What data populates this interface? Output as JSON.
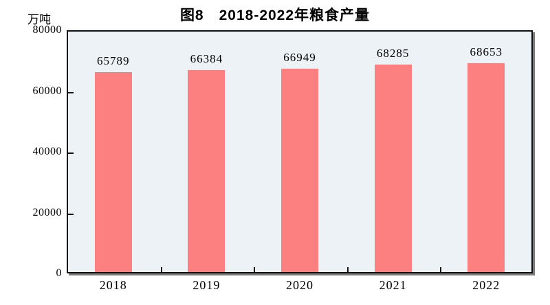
{
  "chart_data": {
    "type": "bar",
    "title": "图8　2018-2022年粮食产量",
    "unit_label": "万吨",
    "categories": [
      "2018",
      "2019",
      "2020",
      "2021",
      "2022"
    ],
    "values": [
      65789,
      66384,
      66949,
      68285,
      68653
    ],
    "xlabel": "",
    "ylabel": "万吨",
    "ylim": [
      0,
      80000
    ],
    "yticks": [
      0,
      20000,
      40000,
      60000,
      80000
    ],
    "grid": false,
    "legend": "none",
    "bar_color": "#FC8080",
    "plot_bg": "#EDF2F6",
    "frame_color": "#111111",
    "shadow_color": "#7a7a7a"
  }
}
